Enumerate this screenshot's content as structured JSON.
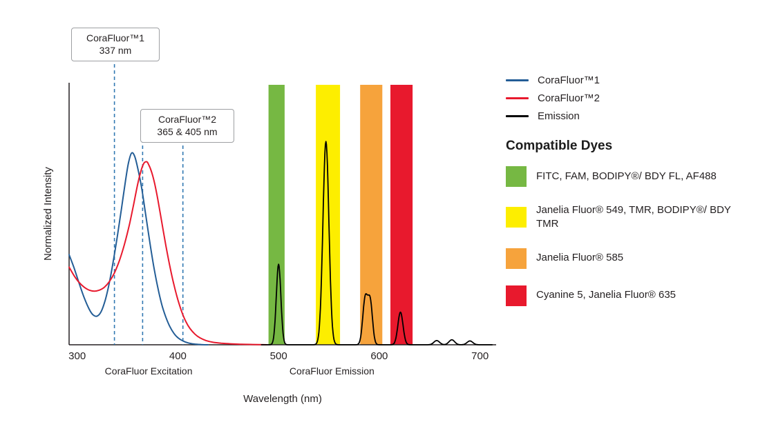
{
  "chart_data": {
    "type": "line",
    "title": "",
    "xlabel": "Wavelength (nm)",
    "ylabel": "Normalized Intensity",
    "xlim": [
      292,
      716
    ],
    "ylim": [
      0,
      1.35
    ],
    "x_ticks": [
      300,
      400,
      500,
      600,
      700
    ],
    "grid": false,
    "legend_position": "right",
    "section_labels": [
      {
        "text": "CoraFluor Excitation",
        "center_nm": 371
      },
      {
        "text": "CoraFluor Emission",
        "center_nm": 553
      }
    ],
    "annotations": [
      {
        "title": "CoraFluor™1",
        "subtitle": "337 nm",
        "lines_nm": [
          337
        ],
        "line_color": "#3178b2"
      },
      {
        "title": "CoraFluor™2",
        "subtitle": "365 & 405 nm",
        "lines_nm": [
          365,
          405
        ],
        "line_color": "#3178b2"
      }
    ],
    "bands": [
      {
        "from_nm": 490,
        "to_nm": 506,
        "color": "#76b843"
      },
      {
        "from_nm": 537,
        "to_nm": 561,
        "color": "#fdee00"
      },
      {
        "from_nm": 581,
        "to_nm": 603,
        "color": "#f6a33c"
      },
      {
        "from_nm": 611,
        "to_nm": 633,
        "color": "#e8192d"
      }
    ],
    "series": [
      {
        "name": "CoraFluor™1",
        "kind": "points",
        "color": "#235d96",
        "points": [
          [
            292,
            0.47
          ],
          [
            297,
            0.4
          ],
          [
            302,
            0.32
          ],
          [
            307,
            0.245
          ],
          [
            312,
            0.185
          ],
          [
            316,
            0.155
          ],
          [
            320,
            0.15
          ],
          [
            324,
            0.175
          ],
          [
            328,
            0.235
          ],
          [
            332,
            0.325
          ],
          [
            336,
            0.44
          ],
          [
            340,
            0.57
          ],
          [
            344,
            0.71
          ],
          [
            348,
            0.855
          ],
          [
            351,
            0.95
          ],
          [
            354,
            1.0
          ],
          [
            357,
            0.985
          ],
          [
            360,
            0.925
          ],
          [
            364,
            0.82
          ],
          [
            368,
            0.68
          ],
          [
            372,
            0.54
          ],
          [
            376,
            0.41
          ],
          [
            380,
            0.3
          ],
          [
            384,
            0.21
          ],
          [
            388,
            0.145
          ],
          [
            392,
            0.095
          ],
          [
            396,
            0.06
          ],
          [
            400,
            0.037
          ],
          [
            405,
            0.02
          ],
          [
            410,
            0.01
          ],
          [
            416,
            0.004
          ],
          [
            423,
            0.001
          ],
          [
            430,
            0
          ]
        ]
      },
      {
        "name": "CoraFluor™2",
        "kind": "points",
        "color": "#e8192d",
        "points": [
          [
            292,
            0.405
          ],
          [
            297,
            0.36
          ],
          [
            302,
            0.325
          ],
          [
            307,
            0.3
          ],
          [
            312,
            0.285
          ],
          [
            317,
            0.28
          ],
          [
            322,
            0.285
          ],
          [
            327,
            0.3
          ],
          [
            332,
            0.33
          ],
          [
            337,
            0.375
          ],
          [
            342,
            0.44
          ],
          [
            347,
            0.525
          ],
          [
            352,
            0.63
          ],
          [
            356,
            0.73
          ],
          [
            360,
            0.835
          ],
          [
            363,
            0.9
          ],
          [
            366,
            0.945
          ],
          [
            369,
            0.955
          ],
          [
            371,
            0.94
          ],
          [
            374,
            0.9
          ],
          [
            377,
            0.84
          ],
          [
            380,
            0.76
          ],
          [
            384,
            0.64
          ],
          [
            388,
            0.52
          ],
          [
            392,
            0.41
          ],
          [
            396,
            0.315
          ],
          [
            400,
            0.235
          ],
          [
            404,
            0.17
          ],
          [
            408,
            0.12
          ],
          [
            412,
            0.085
          ],
          [
            417,
            0.055
          ],
          [
            422,
            0.036
          ],
          [
            428,
            0.022
          ],
          [
            435,
            0.013
          ],
          [
            443,
            0.008
          ],
          [
            452,
            0.005
          ],
          [
            462,
            0.003
          ],
          [
            474,
            0.0015
          ],
          [
            488,
            0
          ]
        ]
      },
      {
        "name": "Emission",
        "kind": "peaks",
        "color": "#000000",
        "range_nm": [
          483,
          712
        ],
        "peaks": [
          {
            "center": 500,
            "height": 0.42,
            "width": 3.2
          },
          {
            "center": 547,
            "height": 1.06,
            "width": 4.2
          },
          {
            "center": 586,
            "height": 0.24,
            "width": 3.4
          },
          {
            "center": 591,
            "height": 0.22,
            "width": 3.2
          },
          {
            "center": 621,
            "height": 0.17,
            "width": 3.6
          },
          {
            "center": 657,
            "height": 0.022,
            "width": 4
          },
          {
            "center": 672,
            "height": 0.026,
            "width": 4
          },
          {
            "center": 690,
            "height": 0.02,
            "width": 4
          }
        ]
      }
    ]
  },
  "legend": {
    "items": [
      {
        "label": "CoraFluor™1",
        "color": "#235d96"
      },
      {
        "label": "CoraFluor™2",
        "color": "#e8192d"
      },
      {
        "label": "Emission",
        "color": "#000000"
      }
    ]
  },
  "dyes": {
    "heading": "Compatible Dyes",
    "items": [
      {
        "color": "#76b843",
        "label": "FITC, FAM, BODIPY®/ BDY FL, AF488"
      },
      {
        "color": "#fdee00",
        "label": "Janelia Fluor® 549, TMR, BODIPY®/ BDY TMR"
      },
      {
        "color": "#f6a33c",
        "label": "Janelia Fluor® 585"
      },
      {
        "color": "#e8192d",
        "label": "Cyanine 5, Janelia Fluor® 635"
      }
    ]
  }
}
